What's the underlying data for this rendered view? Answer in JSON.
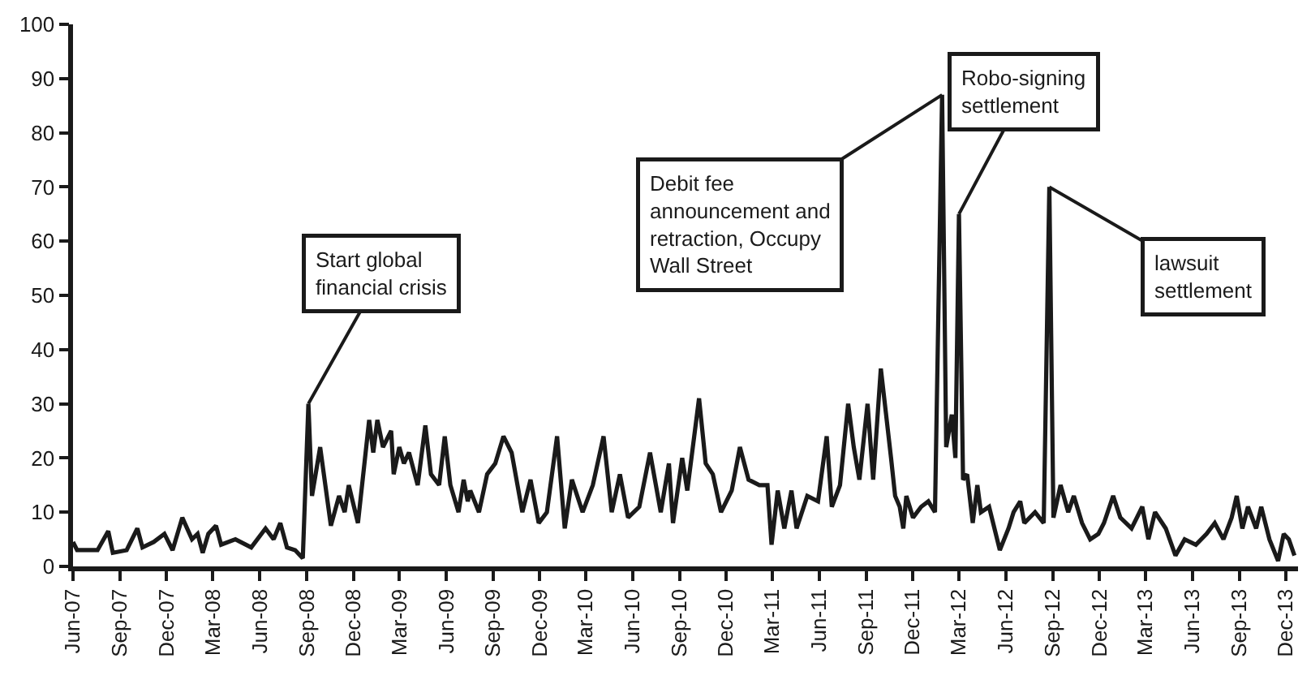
{
  "chart_data": {
    "type": "line",
    "x": [
      "2007-06-01",
      "2007-06-09",
      "2007-07-01",
      "2007-07-19",
      "2007-08-09",
      "2007-08-18",
      "2007-09-14",
      "2007-10-05",
      "2007-10-15",
      "2007-11-06",
      "2007-11-27",
      "2007-12-13",
      "2008-01-01",
      "2008-01-20",
      "2008-01-31",
      "2008-02-10",
      "2008-02-21",
      "2008-03-07",
      "2008-03-17",
      "2008-04-14",
      "2008-05-15",
      "2008-06-12",
      "2008-06-28",
      "2008-07-11",
      "2008-07-24",
      "2008-08-09",
      "2008-08-24",
      "2008-09-04",
      "2008-09-11",
      "2008-09-27",
      "2008-10-18",
      "2008-11-03",
      "2008-11-14",
      "2008-11-22",
      "2008-12-10",
      "2009-01-01",
      "2009-01-09",
      "2009-01-17",
      "2009-01-28",
      "2009-02-13",
      "2009-02-18",
      "2009-03-01",
      "2009-03-10",
      "2009-03-20",
      "2009-04-06",
      "2009-04-21",
      "2009-05-02",
      "2009-05-18",
      "2009-05-29",
      "2009-06-09",
      "2009-06-25",
      "2009-07-05",
      "2009-07-13",
      "2009-07-18",
      "2009-08-04",
      "2009-08-20",
      "2009-09-05",
      "2009-09-21",
      "2009-10-07",
      "2009-10-28",
      "2009-11-13",
      "2009-11-29",
      "2009-12-15",
      "2010-01-04",
      "2010-01-19",
      "2010-02-02",
      "2010-02-23",
      "2010-03-15",
      "2010-04-05",
      "2010-04-21",
      "2010-05-07",
      "2010-05-23",
      "2010-06-14",
      "2010-07-05",
      "2010-07-26",
      "2010-08-11",
      "2010-08-19",
      "2010-09-06",
      "2010-09-16",
      "2010-10-09",
      "2010-10-22",
      "2010-11-05",
      "2010-11-21",
      "2010-12-12",
      "2010-12-28",
      "2011-01-14",
      "2011-02-04",
      "2011-02-20",
      "2011-02-28",
      "2011-03-12",
      "2011-03-25",
      "2011-04-08",
      "2011-04-18",
      "2011-05-09",
      "2011-05-30",
      "2011-06-16",
      "2011-06-26",
      "2011-07-12",
      "2011-07-28",
      "2011-08-08",
      "2011-08-19",
      "2011-09-04",
      "2011-09-15",
      "2011-09-30",
      "2011-10-20",
      "2011-10-28",
      "2011-11-06",
      "2011-11-13",
      "2011-11-19",
      "2011-12-02",
      "2011-12-18",
      "2012-01-01",
      "2012-01-14",
      "2012-01-28",
      "2012-02-05",
      "2012-02-16",
      "2012-02-23",
      "2012-03-01",
      "2012-03-09",
      "2012-03-17",
      "2012-03-28",
      "2012-04-06",
      "2012-04-13",
      "2012-04-29",
      "2012-05-20",
      "2012-06-06",
      "2012-06-16",
      "2012-06-29",
      "2012-07-07",
      "2012-07-28",
      "2012-08-14",
      "2012-08-25",
      "2012-09-02",
      "2012-09-16",
      "2012-10-01",
      "2012-10-12",
      "2012-10-28",
      "2012-11-13",
      "2012-11-29",
      "2012-12-10",
      "2012-12-28",
      "2013-01-11",
      "2013-02-02",
      "2013-02-23",
      "2013-03-07",
      "2013-03-20",
      "2013-04-10",
      "2013-04-29",
      "2013-05-17",
      "2013-06-08",
      "2013-06-29",
      "2013-07-15",
      "2013-08-01",
      "2013-08-17",
      "2013-08-27",
      "2013-09-07",
      "2013-09-18",
      "2013-10-04",
      "2013-10-14",
      "2013-10-30",
      "2013-11-16",
      "2013-11-27",
      "2013-12-07",
      "2013-12-18"
    ],
    "series": [
      {
        "color": "#1a1a1a",
        "values": [
          4.5,
          3,
          3,
          3,
          6.5,
          2.5,
          3,
          7,
          3.5,
          4.5,
          6,
          3,
          9,
          5,
          6,
          2.5,
          6,
          7.5,
          4,
          5,
          3.5,
          7,
          5,
          8,
          3.5,
          3,
          1.5,
          30,
          13,
          22,
          7.5,
          13,
          10,
          15,
          8,
          27,
          21,
          27,
          22,
          25,
          17,
          22,
          19,
          21,
          15,
          26,
          17,
          15,
          24,
          15,
          10,
          16,
          12,
          14,
          10,
          17,
          19,
          24,
          21,
          10,
          16,
          8,
          10,
          24,
          7,
          16,
          10,
          15,
          24,
          10,
          17,
          9,
          11,
          21,
          10,
          19,
          8,
          20,
          14,
          31,
          19,
          17,
          10,
          14,
          22,
          16,
          15,
          15,
          4,
          14,
          7,
          14,
          7,
          13,
          12,
          24,
          11,
          15,
          30,
          22,
          16,
          30,
          16,
          36.5,
          20,
          13,
          11,
          7,
          13,
          9,
          11,
          12,
          10,
          87,
          22,
          28,
          20,
          65,
          16,
          17,
          8,
          15,
          10,
          11,
          3,
          7,
          10,
          12,
          8,
          10,
          8,
          70,
          9,
          15,
          10,
          13,
          8,
          5,
          6,
          8,
          13,
          9,
          7,
          11,
          5,
          10,
          7,
          2,
          5,
          4,
          6,
          8,
          5,
          9,
          13,
          7,
          11,
          7,
          11,
          5,
          1,
          6,
          5,
          2
        ]
      }
    ],
    "xlim": [
      "2007-06-01",
      "2013-12-25"
    ],
    "xticks": [
      {
        "value": "2007-06-01",
        "label": "Jun-07"
      },
      {
        "value": "2007-09-01",
        "label": "Sep-07"
      },
      {
        "value": "2007-12-01",
        "label": "Dec-07"
      },
      {
        "value": "2008-03-01",
        "label": "Mar-08"
      },
      {
        "value": "2008-06-01",
        "label": "Jun-08"
      },
      {
        "value": "2008-09-01",
        "label": "Sep-08"
      },
      {
        "value": "2008-12-01",
        "label": "Dec-08"
      },
      {
        "value": "2009-03-01",
        "label": "Mar-09"
      },
      {
        "value": "2009-06-01",
        "label": "Jun-09"
      },
      {
        "value": "2009-09-01",
        "label": "Sep-09"
      },
      {
        "value": "2009-12-01",
        "label": "Dec-09"
      },
      {
        "value": "2010-03-01",
        "label": "Mar-10"
      },
      {
        "value": "2010-06-01",
        "label": "Jun-10"
      },
      {
        "value": "2010-09-01",
        "label": "Sep-10"
      },
      {
        "value": "2010-12-01",
        "label": "Dec-10"
      },
      {
        "value": "2011-03-01",
        "label": "Mar-11"
      },
      {
        "value": "2011-06-01",
        "label": "Jun-11"
      },
      {
        "value": "2011-09-01",
        "label": "Sep-11"
      },
      {
        "value": "2011-12-01",
        "label": "Dec-11"
      },
      {
        "value": "2012-03-01",
        "label": "Mar-12"
      },
      {
        "value": "2012-06-01",
        "label": "Jun-12"
      },
      {
        "value": "2012-09-01",
        "label": "Sep-12"
      },
      {
        "value": "2012-12-01",
        "label": "Dec-12"
      },
      {
        "value": "2013-03-01",
        "label": "Mar-13"
      },
      {
        "value": "2013-06-01",
        "label": "Jun-13"
      },
      {
        "value": "2013-09-01",
        "label": "Sep-13"
      },
      {
        "value": "2013-12-01",
        "label": "Dec-13"
      }
    ],
    "ylim": [
      0,
      100
    ],
    "yticks": [
      0,
      10,
      20,
      30,
      40,
      50,
      60,
      70,
      80,
      90,
      100
    ],
    "marker": "none",
    "line_style": "solid",
    "annotations": [
      {
        "text": "Start global\nfinancial crisis",
        "x": "2008-09-04",
        "y": 30
      },
      {
        "text": "Debit fee\nannouncement and\nretraction, Occupy\nWall Street",
        "x": "2012-01-28",
        "y": 87
      },
      {
        "text": "Robo-signing\nsettlement",
        "x": "2012-03-01",
        "y": 65
      },
      {
        "text": "lawsuit\nsettlement",
        "x": "2012-08-25",
        "y": 70
      }
    ]
  }
}
